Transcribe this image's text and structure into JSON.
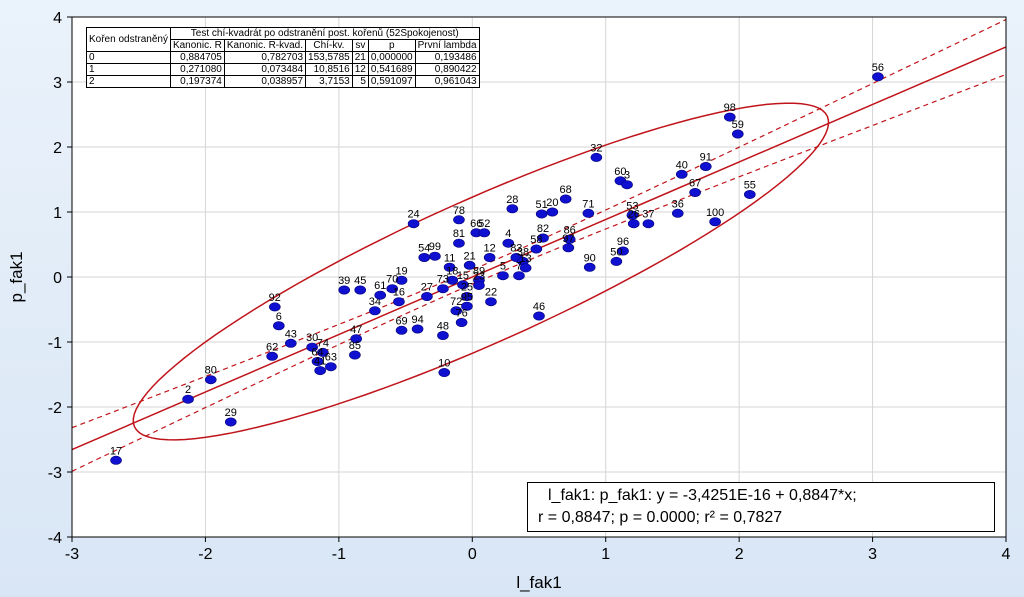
{
  "chart_data": {
    "type": "scatter",
    "xlabel": "l_fak1",
    "ylabel": "p_fak1",
    "xlim": [
      -3,
      4
    ],
    "ylim": [
      -4,
      4
    ],
    "x_ticks": [
      "-3",
      "-2",
      "-1",
      "0",
      "1",
      "2",
      "3",
      "4"
    ],
    "y_ticks": [
      "4",
      "3",
      "2",
      "1",
      "0",
      "-1",
      "-2",
      "-3",
      "-4"
    ],
    "grid": true,
    "regression": {
      "intercept": 0,
      "slope": 0.8847
    },
    "points": [
      {
        "label": "17",
        "x": -2.67,
        "y": -2.82
      },
      {
        "label": "2",
        "x": -2.13,
        "y": -1.88
      },
      {
        "label": "29",
        "x": -1.81,
        "y": -2.23
      },
      {
        "label": "80",
        "x": -1.96,
        "y": -1.58
      },
      {
        "label": "62",
        "x": -1.5,
        "y": -1.22
      },
      {
        "label": "92",
        "x": -1.48,
        "y": -0.46
      },
      {
        "label": "6",
        "x": -1.45,
        "y": -0.75
      },
      {
        "label": "43",
        "x": -1.36,
        "y": -1.02
      },
      {
        "label": "30",
        "x": -1.2,
        "y": -1.08
      },
      {
        "label": "74",
        "x": -1.12,
        "y": -1.16
      },
      {
        "label": "64",
        "x": -1.16,
        "y": -1.3
      },
      {
        "label": "41",
        "x": -1.14,
        "y": -1.44
      },
      {
        "label": "63",
        "x": -1.06,
        "y": -1.38
      },
      {
        "label": "47",
        "x": -0.87,
        "y": -0.95
      },
      {
        "label": "85",
        "x": -0.88,
        "y": -1.2
      },
      {
        "label": "39",
        "x": -0.96,
        "y": -0.2
      },
      {
        "label": "45",
        "x": -0.84,
        "y": -0.2
      },
      {
        "label": "19",
        "x": -0.53,
        "y": -0.05
      },
      {
        "label": "34",
        "x": -0.73,
        "y": -0.52
      },
      {
        "label": "61",
        "x": -0.69,
        "y": -0.28
      },
      {
        "label": "70",
        "x": -0.6,
        "y": -0.18
      },
      {
        "label": "16",
        "x": -0.55,
        "y": -0.38
      },
      {
        "label": "69",
        "x": -0.53,
        "y": -0.82
      },
      {
        "label": "94",
        "x": -0.41,
        "y": -0.8
      },
      {
        "label": "48",
        "x": -0.22,
        "y": -0.9
      },
      {
        "label": "10",
        "x": -0.21,
        "y": -1.47
      },
      {
        "label": "24",
        "x": -0.44,
        "y": 0.82
      },
      {
        "label": "54",
        "x": -0.36,
        "y": 0.3
      },
      {
        "label": "99",
        "x": -0.28,
        "y": 0.32
      },
      {
        "label": "81",
        "x": -0.1,
        "y": 0.52
      },
      {
        "label": "78",
        "x": -0.1,
        "y": 0.88
      },
      {
        "label": "66",
        "x": 0.03,
        "y": 0.68
      },
      {
        "label": "52",
        "x": 0.09,
        "y": 0.68
      },
      {
        "label": "21",
        "x": -0.02,
        "y": 0.18
      },
      {
        "label": "11",
        "x": -0.17,
        "y": 0.15
      },
      {
        "label": "12",
        "x": 0.13,
        "y": 0.3
      },
      {
        "label": "4",
        "x": 0.27,
        "y": 0.52
      },
      {
        "label": "28",
        "x": 0.3,
        "y": 1.05
      },
      {
        "label": "89",
        "x": 0.05,
        "y": -0.05
      },
      {
        "label": "23",
        "x": 0.05,
        "y": -0.13
      },
      {
        "label": "15",
        "x": -0.07,
        "y": -0.12
      },
      {
        "label": "18",
        "x": -0.15,
        "y": -0.05
      },
      {
        "label": "73",
        "x": -0.22,
        "y": -0.18
      },
      {
        "label": "25",
        "x": -0.04,
        "y": -0.3
      },
      {
        "label": "22",
        "x": 0.14,
        "y": -0.38
      },
      {
        "label": "95",
        "x": -0.04,
        "y": -0.45
      },
      {
        "label": "72",
        "x": -0.12,
        "y": -0.52
      },
      {
        "label": "76",
        "x": -0.08,
        "y": -0.7
      },
      {
        "label": "27",
        "x": -0.34,
        "y": -0.3
      },
      {
        "label": "82",
        "x": 0.53,
        "y": 0.6
      },
      {
        "label": "58",
        "x": 0.48,
        "y": 0.43
      },
      {
        "label": "83",
        "x": 0.33,
        "y": 0.3
      },
      {
        "label": "38",
        "x": 0.38,
        "y": 0.24
      },
      {
        "label": "13",
        "x": 0.4,
        "y": 0.14
      },
      {
        "label": "5",
        "x": 0.23,
        "y": 0.02
      },
      {
        "label": "7",
        "x": 0.35,
        "y": 0.02
      },
      {
        "label": "51",
        "x": 0.52,
        "y": 0.97
      },
      {
        "label": "20",
        "x": 0.6,
        "y": 1.0
      },
      {
        "label": "68",
        "x": 0.7,
        "y": 1.2
      },
      {
        "label": "86",
        "x": 0.73,
        "y": 0.58
      },
      {
        "label": "97",
        "x": 0.72,
        "y": 0.45
      },
      {
        "label": "71",
        "x": 0.87,
        "y": 0.98
      },
      {
        "label": "46",
        "x": 0.5,
        "y": -0.6
      },
      {
        "label": "90",
        "x": 0.88,
        "y": 0.15
      },
      {
        "label": "32",
        "x": 0.93,
        "y": 1.84
      },
      {
        "label": "60",
        "x": 1.11,
        "y": 1.48
      },
      {
        "label": "3",
        "x": 1.16,
        "y": 1.42
      },
      {
        "label": "96",
        "x": 1.13,
        "y": 0.4
      },
      {
        "label": "50",
        "x": 1.08,
        "y": 0.24
      },
      {
        "label": "53",
        "x": 1.2,
        "y": 0.95
      },
      {
        "label": "26",
        "x": 1.21,
        "y": 0.82
      },
      {
        "label": "37",
        "x": 1.32,
        "y": 0.82
      },
      {
        "label": "36",
        "x": 1.54,
        "y": 0.98
      },
      {
        "label": "40",
        "x": 1.57,
        "y": 1.58
      },
      {
        "label": "91",
        "x": 1.75,
        "y": 1.7
      },
      {
        "label": "67",
        "x": 1.67,
        "y": 1.3
      },
      {
        "label": "100",
        "x": 1.82,
        "y": 0.85
      },
      {
        "label": "98",
        "x": 1.93,
        "y": 2.46
      },
      {
        "label": "59",
        "x": 1.99,
        "y": 2.2
      },
      {
        "label": "55",
        "x": 2.08,
        "y": 1.27
      },
      {
        "label": "56",
        "x": 3.04,
        "y": 3.08
      }
    ],
    "table": {
      "title": "Test chí-kvadrát po odstranění post. kořenů (52Spokojenost)",
      "row_header": "Kořen odstraněný",
      "columns": [
        "Kanonic. R",
        "Kanonic. R-kvad.",
        "Chí-kv.",
        "sv",
        "p",
        "První lambda"
      ],
      "rows": [
        [
          "0",
          "0,884705",
          "0,782703",
          "153,5785",
          "21",
          "0,000000",
          "0,193486"
        ],
        [
          "1",
          "0,271080",
          "0,073484",
          "10,8516",
          "12",
          "0,541689",
          "0,890422"
        ],
        [
          "2",
          "0,197374",
          "0,038957",
          "3,7153",
          "5",
          "0,591097",
          "0,961043"
        ]
      ]
    },
    "annotation": {
      "line1": "l_fak1:  p_fak1:   y = -3,4251E-16 + 0,8847*x;",
      "line2": "r = 0,8847; p = 0.0000; r² = 0,7827"
    },
    "colors": {
      "points": "#1010d0",
      "regression": "#c0141b",
      "background": "#e3ecf7"
    }
  }
}
